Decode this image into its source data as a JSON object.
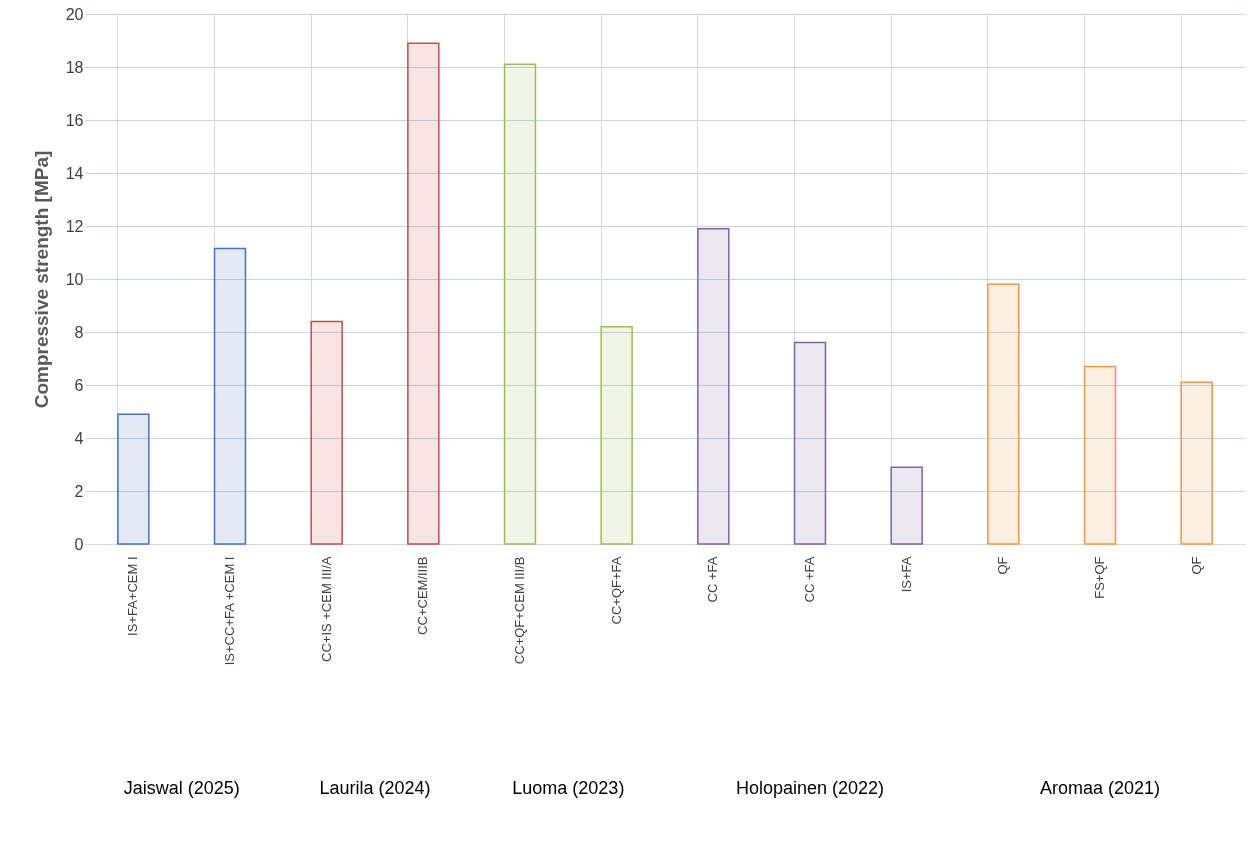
{
  "chart_data": {
    "type": "bar",
    "ylabel": "Compressive strength [MPa]",
    "categories": [
      "IS+FA+CEM I",
      "IS+CC+FA +CEM I",
      "CC+IS +CEM III/A",
      "CC+CEM/IIIB",
      "CC+QF+CEM III/B",
      "CC+QF+FA",
      "CC +FA",
      "CC +FA",
      "IS+FA",
      "QF",
      "FS+QF",
      "QF"
    ],
    "values": [
      4.9,
      11.15,
      8.4,
      18.9,
      18.1,
      8.2,
      11.9,
      7.6,
      2.9,
      9.8,
      6.7,
      6.1
    ],
    "colors": [
      "#4472c4",
      "#4472c4",
      "#c0504d",
      "#c0504d",
      "#9bbb59",
      "#9bbb59",
      "#8064a2",
      "#8064a2",
      "#8064a2",
      "#f79646",
      "#f79646",
      "#f79646"
    ],
    "ylim": [
      0,
      20
    ],
    "yticks": [
      0,
      2,
      4,
      6,
      8,
      10,
      12,
      14,
      16,
      18,
      20
    ],
    "grid": true,
    "annotations": [
      "Jaiswal (2025)",
      "Laurila (2024)",
      "Luoma (2023)",
      "Holopainen (2022)",
      "Aromaa (2021)"
    ]
  }
}
